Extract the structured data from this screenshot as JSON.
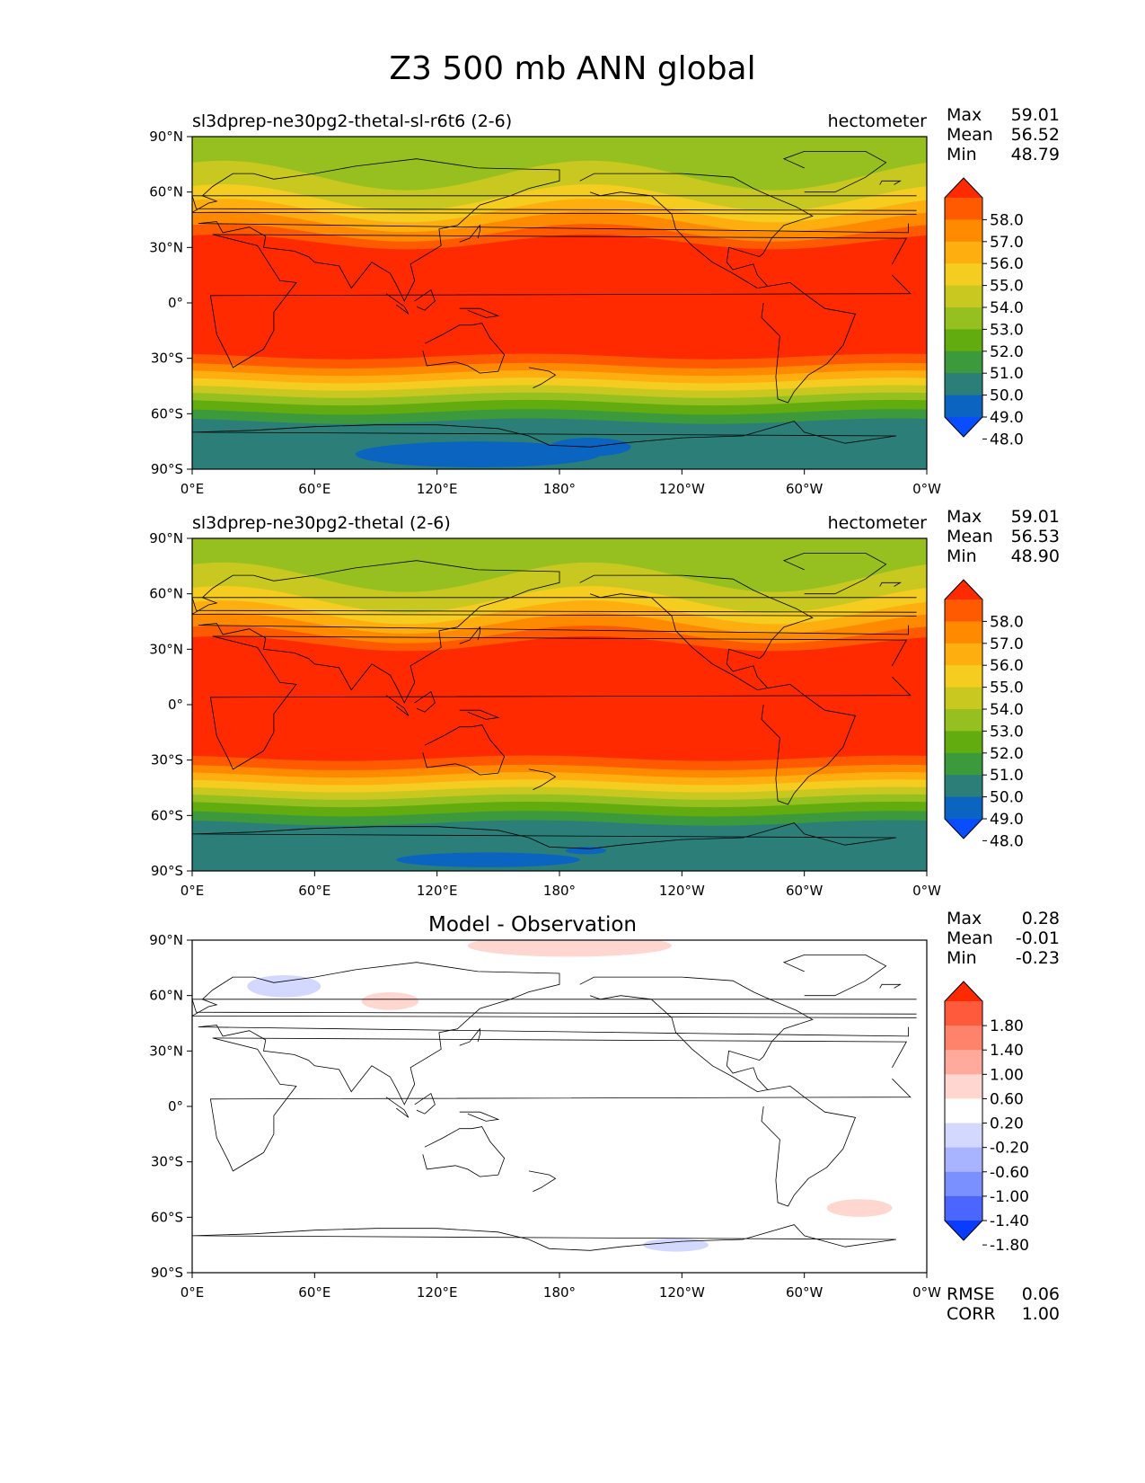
{
  "title": "Z3 500 mb ANN global",
  "panels": [
    {
      "id": "model",
      "subtitle_left": "sl3dprep-ne30pg2-thetal-sl-r6t6 (2-6)",
      "subtitle_right": "hectometer",
      "center_title": "",
      "stats": [
        {
          "label": "Max",
          "value": "59.01"
        },
        {
          "label": "Mean",
          "value": "56.52"
        },
        {
          "label": "Min",
          "value": "48.79"
        }
      ],
      "extra_stats": [],
      "colorbar": {
        "ticks": [
          "58.0",
          "57.0",
          "56.0",
          "55.0",
          "54.0",
          "53.0",
          "52.0",
          "51.0",
          "50.0",
          "49.0",
          "48.0"
        ],
        "colors_top_to_bottom": [
          "#ff2a00",
          "#ff5a00",
          "#ff8a00",
          "#ffae10",
          "#f5cc20",
          "#c8c820",
          "#96c020",
          "#62ac10",
          "#3c9a3c",
          "#2b7f78",
          "#0a64c0",
          "#0a4cff"
        ]
      }
    },
    {
      "id": "observation",
      "subtitle_left": "sl3dprep-ne30pg2-thetal (2-6)",
      "subtitle_right": "hectometer",
      "center_title": "",
      "stats": [
        {
          "label": "Max",
          "value": "59.01"
        },
        {
          "label": "Mean",
          "value": "56.53"
        },
        {
          "label": "Min",
          "value": "48.90"
        }
      ],
      "extra_stats": [],
      "colorbar": {
        "ticks": [
          "58.0",
          "57.0",
          "56.0",
          "55.0",
          "54.0",
          "53.0",
          "52.0",
          "51.0",
          "50.0",
          "49.0",
          "48.0"
        ],
        "colors_top_to_bottom": [
          "#ff2a00",
          "#ff5a00",
          "#ff8a00",
          "#ffae10",
          "#f5cc20",
          "#c8c820",
          "#96c020",
          "#62ac10",
          "#3c9a3c",
          "#2b7f78",
          "#0a64c0",
          "#0a4cff"
        ]
      }
    },
    {
      "id": "difference",
      "subtitle_left": "",
      "subtitle_right": "",
      "center_title": "Model - Observation",
      "stats": [
        {
          "label": "Max",
          "value": "0.28"
        },
        {
          "label": "Mean",
          "value": "-0.01"
        },
        {
          "label": "Min",
          "value": "-0.23"
        }
      ],
      "extra_stats": [
        {
          "label": "RMSE",
          "value": "0.06"
        },
        {
          "label": "CORR",
          "value": "1.00"
        }
      ],
      "colorbar": {
        "ticks": [
          "1.80",
          "1.40",
          "1.00",
          "0.60",
          "0.20",
          "-0.20",
          "-0.60",
          "-1.00",
          "-1.40",
          "-1.80"
        ],
        "colors_top_to_bottom": [
          "#ff2a00",
          "#ff5a3c",
          "#ff826a",
          "#ffaa9a",
          "#ffd6d0",
          "#ffffff",
          "#d2d8ff",
          "#a8b4ff",
          "#7a90ff",
          "#4a66ff",
          "#0a3cff"
        ]
      }
    }
  ],
  "axes": {
    "yticks": [
      "90°N",
      "60°N",
      "30°N",
      "0°",
      "30°S",
      "60°S",
      "90°S"
    ],
    "xticks": [
      "0°E",
      "60°E",
      "120°E",
      "180°",
      "120°W",
      "60°W",
      "0°W"
    ]
  }
}
